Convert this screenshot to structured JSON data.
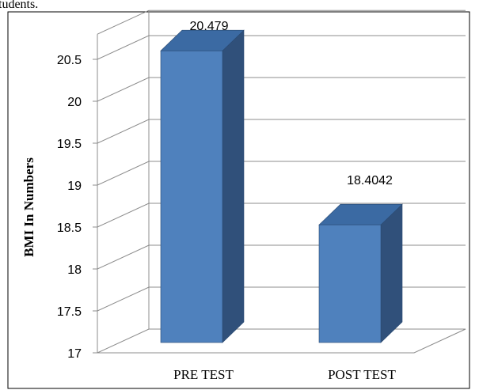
{
  "caption_fragment": "tudents.",
  "colors": {
    "front": "#4f81bd",
    "top": "#3b6aa3",
    "side": "#30507a",
    "edge": "#2a4a72",
    "grid": "#8c8c8c",
    "border": "#000000"
  },
  "chart_data": {
    "type": "bar",
    "categories": [
      "PRE TEST",
      "POST TEST"
    ],
    "series": [
      {
        "values": [
          20.479,
          18.4042
        ]
      }
    ],
    "data_labels": [
      "20.479",
      "18.4042"
    ],
    "ylabel": "BMI In Numbers",
    "ylim": [
      17,
      20.8
    ],
    "yticks": [
      17,
      17.5,
      18,
      18.5,
      19,
      19.5,
      20,
      20.5
    ],
    "ytick_labels": [
      "17",
      "17.5",
      "18",
      "18.5",
      "19",
      "19.5",
      "20",
      "20.5"
    ],
    "grid": true,
    "style": "3d-column"
  }
}
